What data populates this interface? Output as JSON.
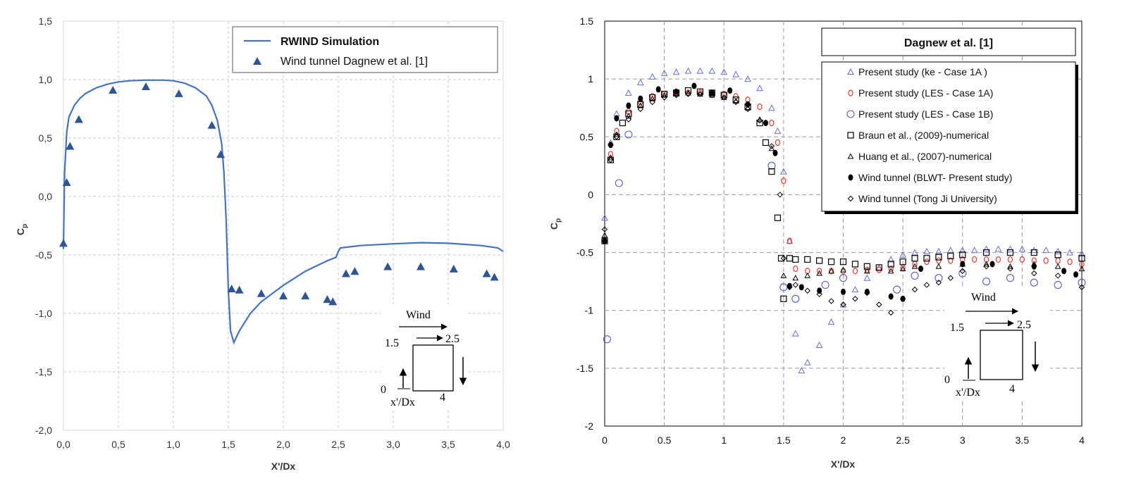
{
  "colors": {
    "simulation": "#4472c4",
    "tunnel": "#2e5597",
    "ke": "#6b6bd6",
    "les1a": "#e8382b",
    "les1b": "#5a5ac8",
    "black": "#000000",
    "grid": "#cccccc"
  },
  "chart_data": [
    {
      "type": "scatter",
      "xlabel": "X'/Dx",
      "ylabel": "C",
      "ylabel_sub": "p",
      "xlim": [
        0,
        4
      ],
      "ylim": [
        -2,
        1.5
      ],
      "x_ticks": [
        "0,0",
        "0,5",
        "1,0",
        "1,5",
        "2,0",
        "2,5",
        "3,0",
        "3,5",
        "4,0"
      ],
      "y_ticks": [
        "1,5",
        "1,0",
        "0,5",
        "0,0",
        "-0,5",
        "-1,0",
        "-1,5",
        "-2,0"
      ],
      "legend": {
        "title": "",
        "entries": [
          "RWIND Simulation",
          "Wind tunnel Dagnew et al. [1]"
        ]
      },
      "series": [
        {
          "name": "RWIND Simulation",
          "kind": "line",
          "x": [
            0,
            0.01,
            0.03,
            0.05,
            0.1,
            0.15,
            0.2,
            0.3,
            0.4,
            0.5,
            0.6,
            0.75,
            0.9,
            1.0,
            1.1,
            1.2,
            1.3,
            1.35,
            1.4,
            1.44,
            1.46,
            1.48,
            1.5,
            1.52,
            1.55,
            1.6,
            1.7,
            1.8,
            2.0,
            2.2,
            2.4,
            2.48,
            2.5,
            2.52,
            2.7,
            3.0,
            3.25,
            3.5,
            3.8,
            3.95,
            4.0
          ],
          "y": [
            -0.45,
            0.2,
            0.55,
            0.68,
            0.78,
            0.84,
            0.88,
            0.93,
            0.96,
            0.98,
            0.99,
            0.995,
            0.995,
            0.99,
            0.97,
            0.93,
            0.86,
            0.78,
            0.65,
            0.45,
            0.2,
            -0.2,
            -0.8,
            -1.15,
            -1.25,
            -1.15,
            -1.0,
            -0.9,
            -0.76,
            -0.64,
            -0.55,
            -0.52,
            -0.47,
            -0.44,
            -0.42,
            -0.405,
            -0.395,
            -0.4,
            -0.42,
            -0.44,
            -0.47
          ]
        },
        {
          "name": "Wind tunnel Dagnew et al. [1]",
          "kind": "triangle-filled",
          "x": [
            0,
            0.03,
            0.06,
            0.14,
            0.45,
            0.75,
            1.05,
            1.35,
            1.43,
            1.53,
            1.6,
            1.8,
            2.0,
            2.2,
            2.4,
            2.45,
            2.57,
            2.65,
            2.95,
            3.25,
            3.55,
            3.85,
            3.92
          ],
          "y": [
            -0.4,
            0.12,
            0.43,
            0.66,
            0.91,
            0.94,
            0.88,
            0.61,
            0.36,
            -0.79,
            -0.8,
            -0.83,
            -0.85,
            -0.85,
            -0.88,
            -0.9,
            -0.66,
            -0.64,
            -0.6,
            -0.6,
            -0.62,
            -0.66,
            -0.69
          ]
        }
      ],
      "schematic": {
        "wind_label": "Wind",
        "x_label": "x'/Dx",
        "labels": [
          "1.5",
          "2.5",
          "0",
          "4"
        ]
      }
    },
    {
      "type": "scatter",
      "xlabel": "X'/Dx",
      "ylabel": "C",
      "ylabel_sub": "p",
      "xlim": [
        0,
        4
      ],
      "ylim": [
        -2,
        1.5
      ],
      "x_ticks": [
        "0",
        "0.5",
        "1",
        "1.5",
        "2",
        "2.5",
        "3",
        "3.5",
        "4"
      ],
      "y_ticks": [
        "1.5",
        "1",
        "0.5",
        "0",
        "-0.5",
        "-1",
        "-1.5",
        "-2"
      ],
      "legend": {
        "title": "Dagnew et al. [1]",
        "entries": [
          "Present study (ke - Case 1A )",
          "Present study (LES - Case 1A)",
          "Present study (LES - Case 1B)",
          "Braun et al., (2009)-numerical",
          "Huang et al., (2007)-numerical",
          "Wind tunnel (BLWT- Present study)",
          "Wind tunnel (Tong Ji University)"
        ]
      },
      "series": [
        {
          "name": "Present study (ke - Case 1A )",
          "marker": "triangle-open",
          "x": [
            0,
            0.05,
            0.1,
            0.2,
            0.3,
            0.4,
            0.5,
            0.6,
            0.7,
            0.8,
            0.9,
            1.0,
            1.1,
            1.2,
            1.3,
            1.4,
            1.45,
            1.5,
            1.55,
            1.6,
            1.65,
            1.7,
            1.8,
            1.9,
            2.0,
            2.1,
            2.2,
            2.3,
            2.4,
            2.5,
            2.6,
            2.7,
            2.8,
            2.9,
            3.0,
            3.1,
            3.2,
            3.3,
            3.4,
            3.5,
            3.6,
            3.7,
            3.8,
            3.9,
            4.0
          ],
          "y": [
            -0.2,
            0.45,
            0.7,
            0.88,
            0.97,
            1.02,
            1.05,
            1.06,
            1.07,
            1.07,
            1.07,
            1.06,
            1.04,
            1.0,
            0.92,
            0.75,
            0.55,
            0.2,
            -0.4,
            -1.2,
            -1.52,
            -1.45,
            -1.3,
            -1.1,
            -0.95,
            -0.82,
            -0.72,
            -0.63,
            -0.56,
            -0.52,
            -0.5,
            -0.49,
            -0.49,
            -0.48,
            -0.48,
            -0.48,
            -0.47,
            -0.47,
            -0.47,
            -0.47,
            -0.48,
            -0.48,
            -0.49,
            -0.5,
            -0.51
          ]
        },
        {
          "name": "Present study (LES - Case 1A)",
          "marker": "circle-open",
          "x": [
            0,
            0.05,
            0.1,
            0.2,
            0.3,
            0.4,
            0.5,
            0.6,
            0.7,
            0.8,
            0.9,
            1.0,
            1.1,
            1.2,
            1.3,
            1.4,
            1.45,
            1.5,
            1.55,
            1.6,
            1.7,
            1.8,
            1.9,
            2.0,
            2.1,
            2.2,
            2.3,
            2.4,
            2.5,
            2.6,
            2.7,
            2.8,
            2.9,
            3.0,
            3.1,
            3.2,
            3.3,
            3.4,
            3.5,
            3.6,
            3.7,
            3.8,
            3.9,
            4.0
          ],
          "y": [
            -0.4,
            0.35,
            0.55,
            0.72,
            0.8,
            0.85,
            0.87,
            0.88,
            0.88,
            0.88,
            0.88,
            0.87,
            0.85,
            0.82,
            0.76,
            0.62,
            0.45,
            0.12,
            -0.4,
            -0.64,
            -0.66,
            -0.66,
            -0.66,
            -0.66,
            -0.66,
            -0.65,
            -0.65,
            -0.64,
            -0.63,
            -0.6,
            -0.58,
            -0.57,
            -0.57,
            -0.56,
            -0.56,
            -0.56,
            -0.56,
            -0.56,
            -0.56,
            -0.57,
            -0.57,
            -0.57,
            -0.58,
            -0.6
          ]
        },
        {
          "name": "Present study (LES - Case 1B)",
          "marker": "circle-open-large",
          "x": [
            0.02,
            0.12,
            0.2,
            1.4,
            1.5,
            1.6,
            1.85,
            2.0,
            2.45,
            2.6,
            2.8,
            3.0,
            3.2,
            3.4,
            3.6,
            3.8,
            4.0
          ],
          "y": [
            -1.25,
            0.1,
            0.52,
            0.25,
            -0.8,
            -0.9,
            -0.78,
            -0.72,
            -0.82,
            -0.7,
            -0.72,
            -0.68,
            -0.75,
            -0.72,
            -0.76,
            -0.78,
            -0.76
          ]
        },
        {
          "name": "Braun et al., (2009)-numerical",
          "marker": "square-open",
          "x": [
            0,
            0.05,
            0.1,
            0.15,
            0.2,
            0.3,
            0.4,
            0.5,
            0.6,
            0.7,
            0.8,
            0.9,
            1.0,
            1.1,
            1.2,
            1.3,
            1.35,
            1.4,
            1.45,
            1.48,
            1.5,
            1.55,
            1.6,
            1.7,
            1.8,
            1.9,
            2.0,
            2.1,
            2.2,
            2.3,
            2.4,
            2.5,
            2.6,
            2.7,
            2.8,
            2.9,
            3.0,
            3.2,
            3.4,
            3.6,
            3.8,
            4.0
          ],
          "y": [
            -0.4,
            0.3,
            0.5,
            0.62,
            0.7,
            0.78,
            0.84,
            0.87,
            0.88,
            0.9,
            0.89,
            0.88,
            0.86,
            0.82,
            0.76,
            0.62,
            0.45,
            0.2,
            -0.2,
            -0.55,
            -0.9,
            -0.55,
            -0.56,
            -0.56,
            -0.57,
            -0.58,
            -0.58,
            -0.6,
            -0.62,
            -0.63,
            -0.6,
            -0.58,
            -0.55,
            -0.55,
            -0.54,
            -0.53,
            -0.52,
            -0.5,
            -0.5,
            -0.5,
            -0.52,
            -0.55
          ]
        },
        {
          "name": "Huang et al., (2007)-numerical",
          "marker": "triangle-open-small",
          "x": [
            0,
            0.05,
            0.1,
            0.2,
            0.3,
            0.4,
            0.5,
            0.6,
            0.7,
            0.8,
            0.9,
            1.0,
            1.1,
            1.2,
            1.3,
            1.4,
            1.5,
            1.6,
            1.7,
            1.8,
            1.9,
            2.0,
            2.2,
            2.4,
            2.5,
            2.6,
            2.8,
            3.0,
            3.2,
            3.4,
            3.6,
            3.8,
            4.0
          ],
          "y": [
            -0.35,
            0.32,
            0.52,
            0.68,
            0.77,
            0.83,
            0.86,
            0.87,
            0.88,
            0.87,
            0.86,
            0.84,
            0.81,
            0.75,
            0.65,
            0.4,
            -0.7,
            -0.72,
            -0.7,
            -0.68,
            -0.66,
            -0.65,
            -0.66,
            -0.66,
            -0.64,
            -0.62,
            -0.62,
            -0.6,
            -0.6,
            -0.62,
            -0.6,
            -0.62,
            -0.64
          ]
        },
        {
          "name": "Wind tunnel (BLWT- Present study)",
          "marker": "circle-filled",
          "x": [
            0,
            0.05,
            0.1,
            0.2,
            0.3,
            0.45,
            0.6,
            0.75,
            0.9,
            1.05,
            1.2,
            1.35,
            1.43,
            1.55,
            1.65,
            1.8,
            2.0,
            2.2,
            2.4,
            2.5,
            2.65,
            3.0,
            3.25,
            3.6,
            3.85,
            3.95
          ],
          "y": [
            -0.4,
            0.43,
            0.66,
            0.77,
            0.83,
            0.91,
            0.89,
            0.94,
            0.88,
            0.9,
            0.78,
            0.62,
            0.36,
            -0.79,
            -0.8,
            -0.83,
            -0.84,
            -0.84,
            -0.88,
            -0.9,
            -0.64,
            -0.6,
            -0.6,
            -0.62,
            -0.66,
            -0.69
          ]
        },
        {
          "name": "Wind tunnel (Tong Ji University)",
          "marker": "diamond-open",
          "x": [
            0,
            0.05,
            0.1,
            0.2,
            0.3,
            0.4,
            0.5,
            0.6,
            0.7,
            0.8,
            0.9,
            1.0,
            1.1,
            1.2,
            1.3,
            1.4,
            1.47,
            1.5,
            1.55,
            1.6,
            1.7,
            1.8,
            1.9,
            2.0,
            2.1,
            2.2,
            2.3,
            2.4,
            2.5,
            2.6,
            2.7,
            2.8,
            2.9,
            3.0,
            3.2,
            3.4,
            3.6,
            3.8,
            4.0
          ],
          "y": [
            -0.3,
            0.3,
            0.5,
            0.65,
            0.74,
            0.8,
            0.84,
            0.86,
            0.87,
            0.87,
            0.86,
            0.84,
            0.8,
            0.74,
            0.64,
            0.42,
            0.0,
            -0.55,
            -0.8,
            -0.78,
            -0.83,
            -0.86,
            -0.92,
            -0.95,
            -0.9,
            -0.85,
            -0.95,
            -1.02,
            -0.9,
            -0.82,
            -0.78,
            -0.76,
            -0.72,
            -0.66,
            -0.62,
            -0.64,
            -0.68,
            -0.7,
            -0.8
          ]
        }
      ],
      "schematic": {
        "wind_label": "Wind",
        "x_label": "x'/Dx",
        "labels": [
          "1.5",
          "2.5",
          "0",
          "4"
        ]
      }
    }
  ]
}
